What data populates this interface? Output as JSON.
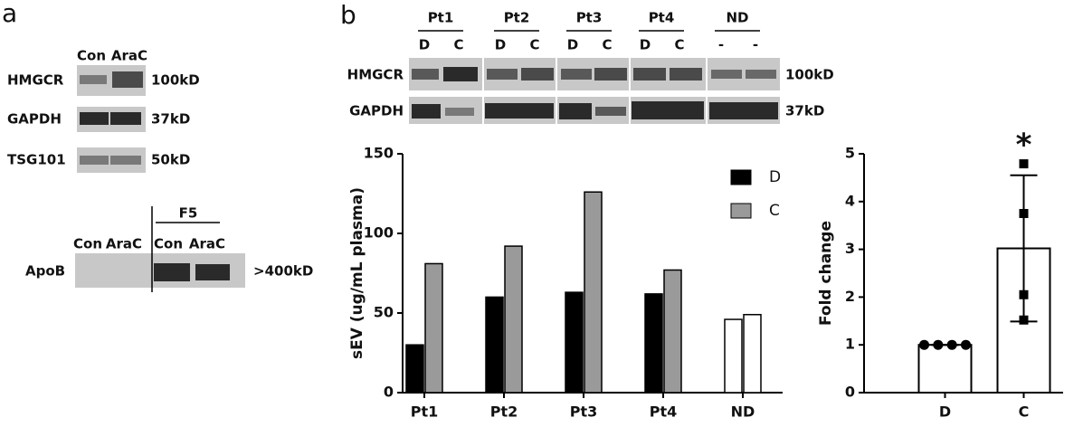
{
  "panel_a": {
    "letter": "a",
    "lanes": [
      "Con",
      "AraC"
    ],
    "blots": [
      {
        "protein": "HMGCR",
        "size": "100kD"
      },
      {
        "protein": "GAPDH",
        "size": "37kD"
      },
      {
        "protein": "TSG101",
        "size": "50kD"
      }
    ],
    "apob": {
      "group": "F5",
      "lanes": [
        "Con",
        "AraC",
        "Con",
        "AraC"
      ],
      "protein": "ApoB",
      "size": ">400kD"
    }
  },
  "panel_b": {
    "letter": "b",
    "patients": [
      "Pt1",
      "Pt2",
      "Pt3",
      "Pt4",
      "ND"
    ],
    "lanes": [
      "D",
      "C",
      "D",
      "C",
      "D",
      "C",
      "D",
      "C",
      "-",
      "-"
    ],
    "blots": [
      {
        "protein": "HMGCR",
        "size": "100kD"
      },
      {
        "protein": "GAPDH",
        "size": "37kD"
      }
    ]
  },
  "chart_data": [
    {
      "type": "bar",
      "y_label": "sEV (ug/mL plasma)",
      "categories": [
        "Pt1",
        "Pt2",
        "Pt3",
        "Pt4",
        "ND"
      ],
      "series": [
        {
          "name": "D",
          "color": "#000000",
          "colors": [
            "#000000",
            "#000000",
            "#000000",
            "#000000",
            "#ffffff"
          ],
          "values": [
            30,
            60,
            63,
            62,
            46
          ]
        },
        {
          "name": "C",
          "color": "#9a9a9a",
          "colors": [
            "#9a9a9a",
            "#9a9a9a",
            "#9a9a9a",
            "#9a9a9a",
            "#ffffff"
          ],
          "values": [
            81,
            92,
            126,
            77,
            49
          ]
        }
      ],
      "ylim": [
        0,
        150
      ],
      "yticks": [
        0,
        50,
        100,
        150
      ],
      "legend": "upper right"
    },
    {
      "type": "bar",
      "y_label": "Fold change",
      "categories": [
        "D",
        "C"
      ],
      "values": [
        1,
        3.02
      ],
      "errors": [
        0,
        1.53
      ],
      "points": [
        [
          1,
          1,
          1,
          1
        ],
        [
          4.79,
          3.75,
          2.05,
          1.52
        ]
      ],
      "markers": [
        "circle",
        "square"
      ],
      "color": "#ffffff",
      "annotation": "*",
      "ylim": [
        0,
        5
      ],
      "yticks": [
        0,
        1,
        2,
        3,
        4,
        5
      ]
    }
  ]
}
